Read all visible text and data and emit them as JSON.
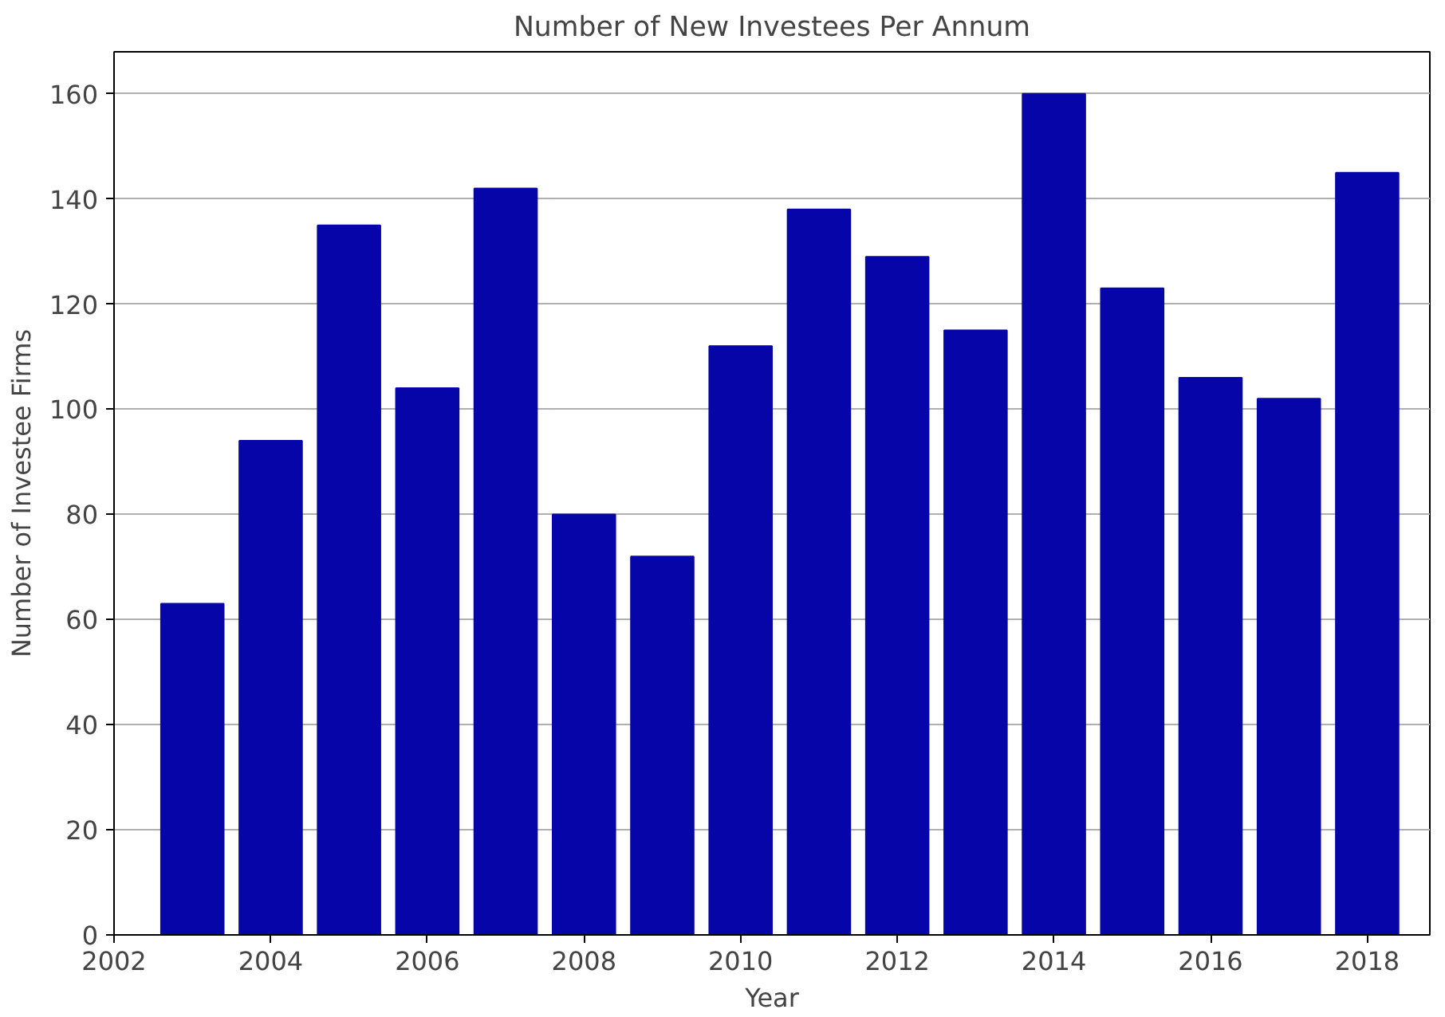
{
  "chart_data": {
    "type": "bar",
    "title": "Number of New Investees Per Annum",
    "xlabel": "Year",
    "ylabel": "Number of Investee Firms",
    "x": [
      2003,
      2004,
      2005,
      2006,
      2007,
      2008,
      2009,
      2010,
      2011,
      2012,
      2013,
      2014,
      2015,
      2016,
      2017,
      2018
    ],
    "values": [
      63,
      94,
      135,
      104,
      142,
      80,
      72,
      112,
      138,
      129,
      115,
      160,
      123,
      106,
      102,
      145
    ],
    "color": "#0606a8",
    "xlim": [
      2002,
      2018.8
    ],
    "xticks": [
      2002,
      2004,
      2006,
      2008,
      2010,
      2012,
      2014,
      2016,
      2018
    ],
    "ylim": [
      0,
      168
    ],
    "yticks": [
      0,
      20,
      40,
      60,
      80,
      100,
      120,
      140,
      160
    ],
    "grid": "y"
  }
}
